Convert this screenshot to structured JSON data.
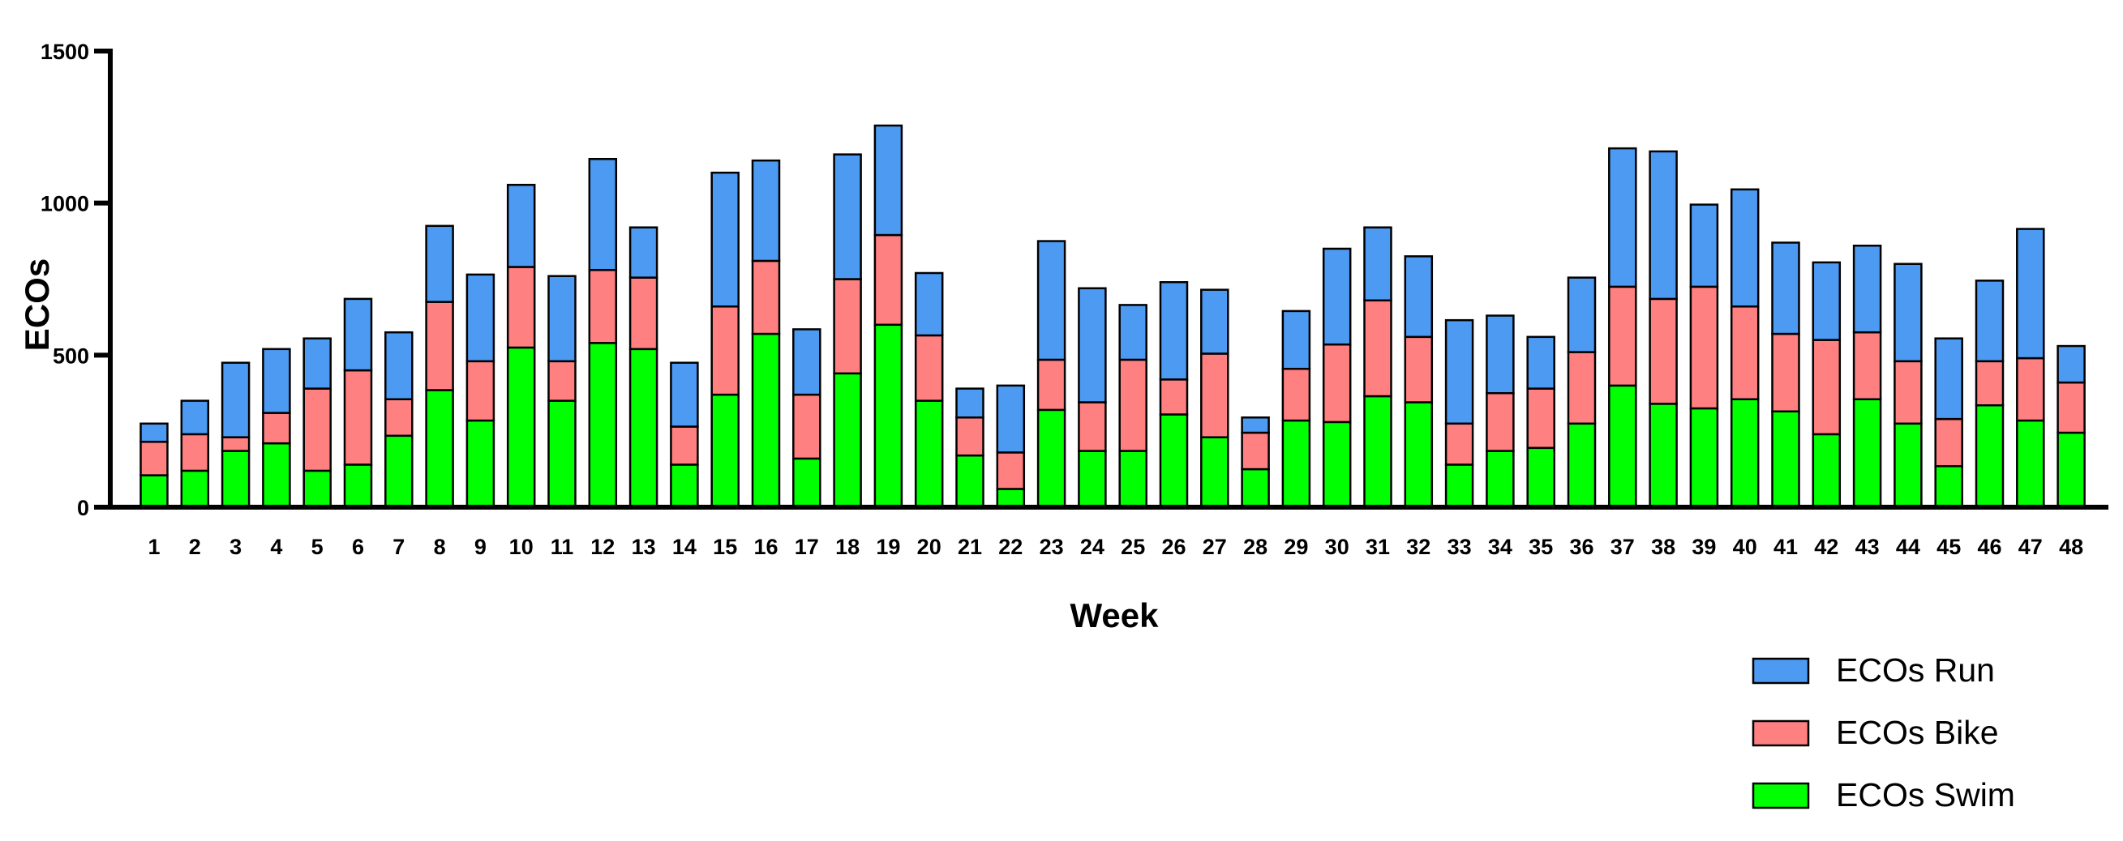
{
  "chart_data": {
    "type": "bar",
    "stacked": true,
    "title": "",
    "xlabel": "Week",
    "ylabel": "ECOs",
    "ylim": [
      0,
      1500
    ],
    "yticks": [
      0,
      500,
      1000,
      1500
    ],
    "grid": false,
    "legend_position": "bottom-right",
    "categories": [
      "1",
      "2",
      "3",
      "4",
      "5",
      "6",
      "7",
      "8",
      "9",
      "10",
      "11",
      "12",
      "13",
      "14",
      "15",
      "16",
      "17",
      "18",
      "19",
      "20",
      "21",
      "22",
      "23",
      "24",
      "25",
      "26",
      "27",
      "28",
      "29",
      "30",
      "31",
      "32",
      "33",
      "34",
      "35",
      "36",
      "37",
      "38",
      "39",
      "40",
      "41",
      "42",
      "43",
      "44",
      "45",
      "46",
      "47",
      "48"
    ],
    "series": [
      {
        "name": "ECOs Swim",
        "color": "#00FF00",
        "values": [
          105,
          120,
          185,
          210,
          120,
          140,
          235,
          385,
          285,
          525,
          350,
          540,
          520,
          140,
          370,
          570,
          160,
          440,
          600,
          350,
          170,
          60,
          320,
          185,
          185,
          305,
          230,
          125,
          285,
          280,
          365,
          345,
          140,
          185,
          195,
          275,
          400,
          340,
          325,
          355,
          315,
          240,
          355,
          275,
          135,
          335,
          285,
          245
        ]
      },
      {
        "name": "ECOs Bike",
        "color": "#FF8080",
        "values": [
          110,
          120,
          45,
          100,
          270,
          310,
          120,
          290,
          195,
          265,
          130,
          240,
          235,
          125,
          290,
          240,
          210,
          310,
          295,
          215,
          125,
          120,
          165,
          160,
          300,
          115,
          275,
          120,
          170,
          255,
          315,
          215,
          135,
          190,
          195,
          235,
          325,
          345,
          400,
          305,
          255,
          310,
          220,
          205,
          155,
          145,
          205,
          165
        ]
      },
      {
        "name": "ECOs Run",
        "color": "#4D9AF2",
        "values": [
          60,
          110,
          245,
          210,
          165,
          235,
          220,
          250,
          285,
          270,
          280,
          365,
          165,
          210,
          440,
          330,
          215,
          410,
          360,
          205,
          95,
          220,
          390,
          375,
          180,
          320,
          210,
          50,
          190,
          315,
          240,
          265,
          340,
          255,
          170,
          245,
          455,
          485,
          270,
          385,
          300,
          255,
          285,
          320,
          265,
          265,
          425,
          120
        ]
      }
    ]
  }
}
